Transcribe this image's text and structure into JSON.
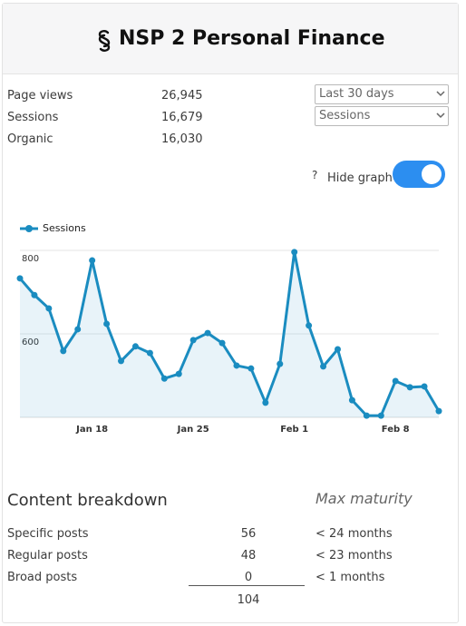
{
  "header": {
    "title": "NSP 2 Personal Finance"
  },
  "stats": [
    {
      "label": "Page views",
      "value": "26,945"
    },
    {
      "label": "Sessions",
      "value": "16,679"
    },
    {
      "label": "Organic",
      "value": "16,030"
    }
  ],
  "controls": {
    "range": "Last 30 days",
    "metric": "Sessions",
    "help": "?",
    "toggle_label": "Hide graph",
    "toggle_on": true
  },
  "chart_data": {
    "type": "line",
    "categories": [
      null,
      null,
      null,
      null,
      null,
      "Jan 18",
      null,
      null,
      null,
      null,
      null,
      null,
      "Jan 25",
      null,
      null,
      null,
      null,
      null,
      null,
      "Feb 1",
      null,
      null,
      null,
      null,
      null,
      null,
      "Feb 8",
      null,
      null,
      null
    ],
    "series": [
      {
        "name": "Sessions",
        "color": "#1a8cc0",
        "values": [
          733,
          693,
          661,
          559,
          611,
          776,
          624,
          535,
          570,
          554,
          493,
          504,
          585,
          602,
          578,
          524,
          517,
          435,
          528,
          796,
          620,
          522,
          563,
          441,
          404,
          404,
          487,
          472,
          474,
          415
        ]
      }
    ],
    "ylim": [
      400,
      800
    ],
    "yticks": [
      600,
      800
    ],
    "grid": true,
    "area": true,
    "legend": "top-left"
  },
  "breakdown": {
    "title": "Content breakdown",
    "maturity_title": "Max maturity",
    "rows": [
      {
        "label": "Specific posts",
        "count": "56",
        "maturity": "< 24 months"
      },
      {
        "label": "Regular posts",
        "count": "48",
        "maturity": "< 23 months"
      },
      {
        "label": "Broad posts",
        "count": "0",
        "maturity": "< 1 months"
      }
    ],
    "total": "104"
  }
}
